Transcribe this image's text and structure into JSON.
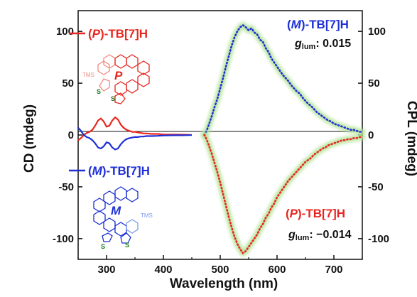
{
  "chart_data": {
    "type": "line",
    "xlabel": "Wavelength (nm)",
    "ylabel_left": "CD (mdeg)",
    "ylabel_right": "CPL (mdeg)",
    "xlim": [
      250,
      750
    ],
    "ylim_left": [
      -120,
      120
    ],
    "ylim_right": [
      -120,
      120
    ],
    "x_ticks": [
      300,
      400,
      500,
      600,
      700
    ],
    "y_ticks_left": [
      100,
      50,
      0,
      -50,
      -100
    ],
    "y_ticks_right": [
      100,
      50,
      0,
      -50,
      -100
    ],
    "zero_line": true,
    "colors": {
      "P": "#e8261f",
      "M": "#1d2fd6",
      "halo": "#b5e39a",
      "axis": "#111111"
    },
    "series": [
      {
        "name_prefix": "(",
        "name_stereo": "P",
        "name_suffix": ")-TB[7]H",
        "kind": "CD",
        "style": "solid",
        "color": "#e8261f",
        "x": [
          250,
          255,
          260,
          265,
          270,
          275,
          280,
          285,
          290,
          295,
          300,
          305,
          310,
          315,
          320,
          325,
          330,
          335,
          340,
          345,
          350,
          355,
          360,
          365,
          370,
          380,
          390,
          400,
          420,
          440,
          450
        ],
        "y": [
          -5,
          -3,
          0,
          2,
          3,
          5,
          9,
          14,
          16,
          13,
          8,
          9,
          14,
          17,
          15,
          10,
          7,
          5,
          4,
          3,
          3,
          2.5,
          2,
          1.5,
          1.5,
          1,
          1,
          0.5,
          0.5,
          0.3,
          0
        ]
      },
      {
        "name_prefix": "(",
        "name_stereo": "M",
        "name_suffix": ")-TB[7]H",
        "kind": "CD",
        "style": "solid",
        "color": "#1d2fd6",
        "x": [
          250,
          255,
          260,
          265,
          270,
          275,
          280,
          285,
          290,
          295,
          300,
          305,
          310,
          315,
          320,
          325,
          330,
          335,
          340,
          345,
          350,
          355,
          360,
          365,
          370,
          380,
          390,
          400,
          420,
          440,
          450
        ],
        "y": [
          7,
          4,
          0,
          -2,
          -3,
          -5,
          -8,
          -12,
          -13,
          -11,
          -7,
          -8,
          -12,
          -14,
          -13,
          -9,
          -6,
          -4,
          -3,
          -2.5,
          -2,
          -2,
          -1.5,
          -1.5,
          -1,
          -1,
          -0.8,
          -0.5,
          -0.3,
          -0.2,
          0
        ]
      },
      {
        "name_prefix": "(",
        "name_stereo": "M",
        "name_suffix": ")-TB[7]H",
        "kind": "CPL",
        "style": "dotted",
        "color": "#1d2fd6",
        "x": [
          472,
          476,
          480,
          485,
          490,
          495,
          500,
          505,
          510,
          515,
          520,
          525,
          530,
          535,
          540,
          545,
          550,
          555,
          560,
          565,
          570,
          575,
          580,
          585,
          590,
          595,
          600,
          605,
          610,
          615,
          620,
          625,
          630,
          635,
          640,
          645,
          650,
          655,
          660,
          665,
          670,
          675,
          680,
          685,
          690,
          695,
          700,
          705,
          710,
          715,
          720,
          725,
          730,
          735,
          740,
          745,
          750
        ],
        "y": [
          0,
          4,
          10,
          18,
          27,
          35,
          45,
          55,
          66,
          76,
          86,
          94,
          100,
          104,
          106,
          104,
          101,
          103,
          99,
          97,
          92,
          90,
          84,
          80,
          74,
          70,
          66,
          62,
          58,
          55,
          52,
          48,
          45,
          42,
          40,
          36,
          33,
          30,
          28,
          25,
          22,
          20,
          18,
          16,
          14,
          13,
          11,
          10,
          9,
          8,
          7,
          6,
          5,
          5,
          4,
          3,
          3
        ]
      },
      {
        "name_prefix": "(",
        "name_stereo": "P",
        "name_suffix": ")-TB[7]H",
        "kind": "CPL",
        "style": "dotted",
        "color": "#e8261f",
        "x": [
          472,
          476,
          480,
          485,
          490,
          495,
          500,
          505,
          510,
          515,
          520,
          525,
          530,
          535,
          540,
          545,
          550,
          555,
          560,
          565,
          570,
          575,
          580,
          585,
          590,
          595,
          600,
          605,
          610,
          615,
          620,
          625,
          630,
          635,
          640,
          645,
          650,
          655,
          660,
          665,
          670,
          675,
          680,
          685,
          690,
          695,
          700,
          705,
          710,
          715,
          720,
          725,
          730,
          735,
          740,
          745,
          750
        ],
        "y": [
          0,
          -4,
          -10,
          -18,
          -27,
          -36,
          -46,
          -57,
          -68,
          -79,
          -89,
          -98,
          -105,
          -110,
          -114,
          -112,
          -108,
          -104,
          -100,
          -96,
          -90,
          -86,
          -80,
          -76,
          -70,
          -66,
          -60,
          -56,
          -52,
          -48,
          -44,
          -41,
          -38,
          -35,
          -32,
          -29,
          -26,
          -24,
          -22,
          -19,
          -17,
          -15,
          -13,
          -12,
          -10,
          -9,
          -8,
          -7,
          -6,
          -5,
          -5,
          -4,
          -4,
          -3,
          -3,
          -2,
          -2
        ]
      }
    ],
    "legend": {
      "P": {
        "prefix": "(",
        "stereo": "P",
        "suffix": ")-TB[7]H"
      },
      "M": {
        "prefix": "(",
        "stereo": "M",
        "suffix": ")-TB[7]H"
      }
    },
    "annotations": {
      "cpl_M_label": {
        "prefix": "(",
        "stereo": "M",
        "suffix": ")-TB[7]H"
      },
      "cpl_P_label": {
        "prefix": "(",
        "stereo": "P",
        "suffix": ")-TB[7]H"
      },
      "glum_M": {
        "g": "g",
        "sub": "lum",
        "value": ": 0.015"
      },
      "glum_P": {
        "g": "g",
        "sub": "lum",
        "value": ": −0.014"
      }
    },
    "structures": {
      "P": {
        "label": "P",
        "tms": "TMS",
        "s1": "S",
        "s2": "S",
        "color": "#e8261f"
      },
      "M": {
        "label": "M",
        "tms": "TMS",
        "s1": "S",
        "s2": "S",
        "color": "#1d2fd6"
      }
    }
  }
}
